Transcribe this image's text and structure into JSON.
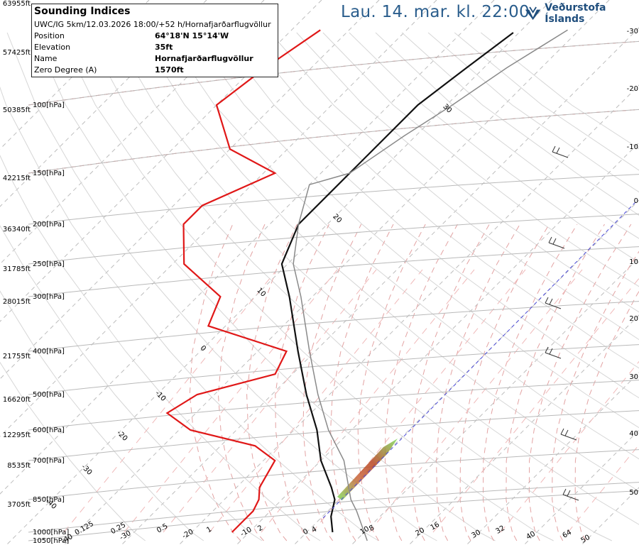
{
  "header": {
    "title": "Lau. 14. mar. kl. 22:00"
  },
  "brand": {
    "name": "Veðurstofa Íslands",
    "accent": "#1f4e7d"
  },
  "info": {
    "title": "Sounding Indices",
    "run": "UWC/IG 5km/12.03.2026 18:00/+52 h/Hornafjarðarflugvöllur",
    "rows": [
      {
        "label": "Position",
        "value": "64°18'N 15°14'W"
      },
      {
        "label": "Elevation",
        "value": "35ft"
      },
      {
        "label": "Name",
        "value": "Hornafjarðarflugvöllur"
      },
      {
        "label": "Zero Degree (A)",
        "value": "1570ft"
      }
    ]
  },
  "chart_data": {
    "type": "line",
    "title": "",
    "xlabel": "",
    "ylabel": "",
    "grid": true,
    "pressure_levels": [
      {
        "hpa": "100[hPa]",
        "ft": "50385ft"
      },
      {
        "hpa": "150[hPa]",
        "ft": "42215ft"
      },
      {
        "hpa": "200[hPa]",
        "ft": "36340ft"
      },
      {
        "hpa": "250[hPa]",
        "ft": "31785ft"
      },
      {
        "hpa": "300[hPa]",
        "ft": "28015ft"
      },
      {
        "hpa": "400[hPa]",
        "ft": "21755ft"
      },
      {
        "hpa": "500[hPa]",
        "ft": "16620ft"
      },
      {
        "hpa": "600[hPa]",
        "ft": "12295ft"
      },
      {
        "hpa": "700[hPa]",
        "ft": "8535ft"
      },
      {
        "hpa": "850[hPa]",
        "ft": "3705ft"
      },
      {
        "hpa": "1000[hPa]",
        "ft": ""
      },
      {
        "hpa": "1050[hPa]",
        "ft": ""
      }
    ],
    "extra_altitude_labels": [
      "63955ft",
      "57425ft"
    ],
    "right_temperature_ticks": [
      "-30",
      "-20",
      "-10",
      "0",
      "10",
      "20",
      "30",
      "40",
      "50"
    ],
    "bottom_labels": [
      "-40",
      "-30",
      "0.125",
      "0.25",
      "-20",
      "0.5",
      "1",
      "-10",
      "2",
      "0",
      "4",
      "10",
      "8",
      "20",
      "16",
      "30",
      "32",
      "40",
      "64",
      "50"
    ],
    "isotherm_labels": [
      "30",
      "20",
      "10",
      "0",
      "-10",
      "-20",
      "-30",
      "-40"
    ],
    "series": [
      {
        "name": "",
        "role": "temperature",
        "pressure": [
          1000,
          925,
          850,
          800,
          700,
          600,
          500,
          400,
          300,
          250,
          200,
          150,
          100,
          80,
          65
        ],
        "values": [
          4.5,
          1.5,
          -0.8,
          -3.5,
          -10,
          -16,
          -24,
          -33,
          -44,
          -51,
          -55,
          -55,
          -55,
          -53,
          -51
        ]
      },
      {
        "name": "",
        "role": "dewpoint",
        "pressure": [
          1000,
          950,
          900,
          850,
          800,
          700,
          650,
          600,
          550,
          500,
          450,
          400,
          350,
          300,
          250,
          200,
          180,
          150,
          130,
          100,
          80,
          64
        ],
        "values": [
          -13,
          -13,
          -13,
          -14,
          -16,
          -18,
          -24,
          -38,
          -45,
          -43,
          -33,
          -35,
          -53,
          -56,
          -68,
          -75,
          -75,
          -68,
          -80,
          -90,
          -88,
          -85
        ]
      },
      {
        "name": "",
        "role": "parcel",
        "pressure": [
          1050,
          1000,
          900,
          850,
          700,
          600,
          500,
          400,
          300,
          250,
          200,
          160,
          150,
          120,
          100,
          80,
          64
        ],
        "values": [
          12,
          10,
          5,
          2,
          -6,
          -14,
          -22,
          -31,
          -42,
          -49,
          -55,
          -60,
          -55,
          -52,
          -49,
          -46,
          -42
        ]
      }
    ],
    "colors": {
      "temperature": "#111111",
      "dewpoint": "#e01818",
      "parcel": "#8a8a8a"
    }
  }
}
